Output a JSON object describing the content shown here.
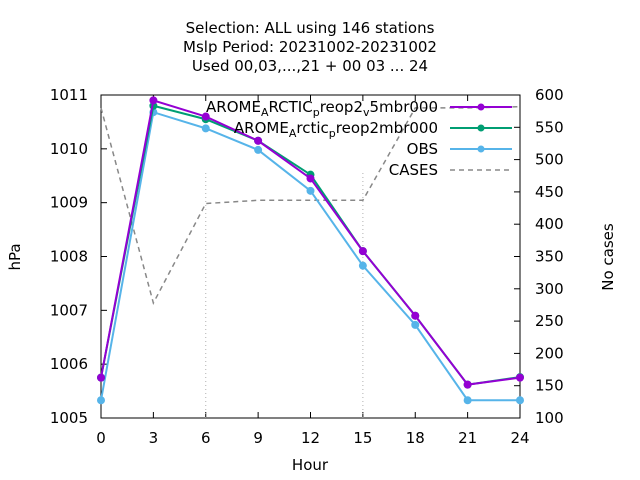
{
  "chart_data": {
    "type": "line",
    "title_lines": [
      "Selection: ALL using   146 stations",
      "Mslp   Period: 20231002-20231002",
      "Used  00,03,...,21  + 00 03 ... 24"
    ],
    "xlabel": "Hour",
    "ylabel": "hPa",
    "y2label": "No cases",
    "x": [
      0,
      3,
      6,
      9,
      12,
      15,
      18,
      21,
      24
    ],
    "xlim": [
      0,
      24
    ],
    "ylim": [
      1005,
      1011
    ],
    "y2lim": [
      100,
      600
    ],
    "x_ticks": [
      "0",
      "3",
      "6",
      "9",
      "12",
      "15",
      "18",
      "21",
      "24"
    ],
    "y_ticks": [
      "1005",
      "1006",
      "1007",
      "1008",
      "1009",
      "1010",
      "1011"
    ],
    "y2_ticks": [
      "100",
      "150",
      "200",
      "250",
      "300",
      "350",
      "400",
      "450",
      "500",
      "550",
      "600"
    ],
    "legend_position": "top-right",
    "grid": false,
    "series": [
      {
        "legend": [
          {
            "t": "AROME",
            "sub": false
          },
          {
            "t": "A",
            "sub": true
          },
          {
            "t": "RCTIC",
            "sub": false
          },
          {
            "t": "p",
            "sub": true
          },
          {
            "t": "reop2",
            "sub": false
          },
          {
            "t": "v",
            "sub": true
          },
          {
            "t": "5mbr000",
            "sub": false
          }
        ],
        "color": "#9400d3",
        "axis": "y",
        "values": [
          1005.75,
          1010.9,
          1010.6,
          1010.15,
          1009.45,
          1008.1,
          1006.9,
          1005.62,
          1005.75
        ]
      },
      {
        "legend": [
          {
            "t": "AROME",
            "sub": false
          },
          {
            "t": "A",
            "sub": true
          },
          {
            "t": "rctic",
            "sub": false
          },
          {
            "t": "p",
            "sub": true
          },
          {
            "t": "reop2mbr000",
            "sub": false
          }
        ],
        "color": "#009e73",
        "axis": "y",
        "values": [
          1005.75,
          1010.8,
          1010.55,
          1010.15,
          1009.52,
          1008.1,
          1006.9,
          1005.62,
          1005.76
        ]
      },
      {
        "legend": [
          {
            "t": "OBS",
            "sub": false
          }
        ],
        "color": "#56b4e9",
        "axis": "y",
        "values": [
          1005.33,
          1010.68,
          1010.38,
          1009.98,
          1009.22,
          1007.83,
          1006.73,
          1005.33,
          1005.33
        ]
      },
      {
        "legend": [
          {
            "t": "CASES",
            "sub": false
          }
        ],
        "color": "#888888",
        "axis": "y2",
        "dashed": true,
        "values": [
          580,
          278,
          432,
          437,
          437,
          437,
          580,
          580,
          582
        ]
      }
    ]
  }
}
